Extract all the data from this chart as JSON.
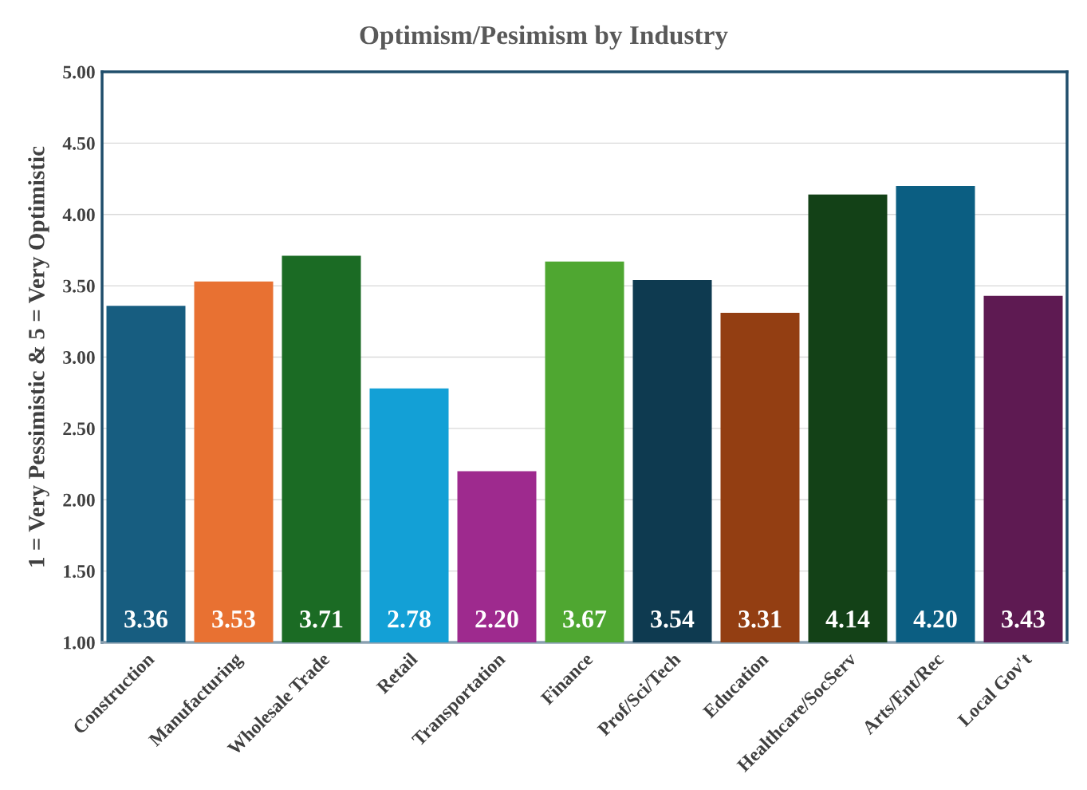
{
  "chart_data": {
    "type": "bar",
    "title": "Optimism/Pesimism by Industry",
    "ylabel": "1 = Very Pessimistic & 5 = Very Optimistic",
    "categories": [
      "Construction",
      "Manufacturing",
      "Wholesale Trade",
      "Retail",
      "Transportation",
      "Finance",
      "Prof/Sci/Tech",
      "Education",
      "Healthcare/SocServ",
      "Arts/Ent/Rec",
      "Local Gov't"
    ],
    "values": [
      3.36,
      3.53,
      3.71,
      2.78,
      2.2,
      3.67,
      3.54,
      3.31,
      4.14,
      4.2,
      3.43
    ],
    "colors": [
      "#175d80",
      "#e87132",
      "#1b6b24",
      "#13a0d6",
      "#9e2a8e",
      "#4fa731",
      "#0e3a50",
      "#933e12",
      "#134117",
      "#0b5e82",
      "#5e1a52"
    ],
    "ylim": [
      1.0,
      5.0
    ],
    "yticks": [
      {
        "value": 1.0,
        "label": "1.00"
      },
      {
        "value": 1.5,
        "label": "1.50"
      },
      {
        "value": 2.0,
        "label": "2.00"
      },
      {
        "value": 2.5,
        "label": "2.50"
      },
      {
        "value": 3.0,
        "label": "3.00"
      },
      {
        "value": 3.5,
        "label": "3.50"
      },
      {
        "value": 4.0,
        "label": "4.00"
      },
      {
        "value": 4.5,
        "label": "4.50"
      },
      {
        "value": 5.0,
        "label": "5.00"
      }
    ],
    "value_labels": [
      "3.36",
      "3.53",
      "3.71",
      "2.78",
      "2.20",
      "3.67",
      "3.54",
      "3.31",
      "4.14",
      "4.20",
      "3.43"
    ],
    "grid": "y"
  }
}
